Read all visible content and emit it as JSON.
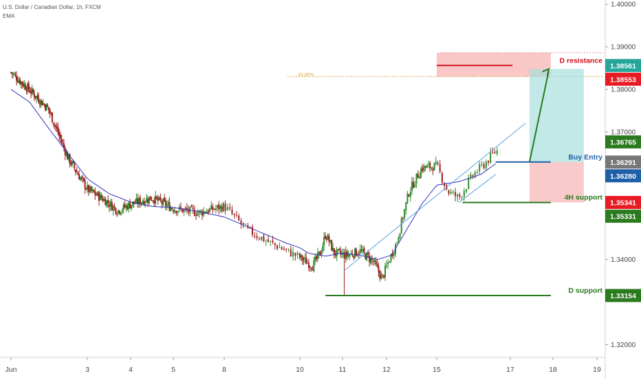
{
  "header": {
    "symbol_line": "U.S. Dollar / Canadian Dollar, 1h, FXCM",
    "indicator": "EMA"
  },
  "colors": {
    "up": "#2a8a2a",
    "down": "#9b1c1c",
    "ema": "#2b2fb8",
    "resistance_zone": "#f7a9a9",
    "target_zone": "#a8dedd",
    "stop_zone": "#f6b3b3",
    "green_line": "#2a7a1e",
    "red_line": "#d0101c",
    "blue_line": "#1f5fa8"
  },
  "chart_data": {
    "type": "candlestick",
    "instrument": "U.S. Dollar / Canadian Dollar",
    "interval": "1h",
    "ylim": [
      1.317,
      1.401
    ],
    "y_ticks": [
      "1.40000",
      "1.39000",
      "1.38000",
      "1.37000",
      "1.34000",
      "1.32000"
    ],
    "x_ticks": [
      "Jun",
      "3",
      "4",
      "5",
      "8",
      "10",
      "11",
      "12",
      "15",
      "17",
      "18",
      "19"
    ],
    "x_tick_day_index": [
      0,
      2,
      3,
      4,
      5,
      6,
      7,
      8,
      9,
      10,
      11,
      12
    ],
    "price_anchors": [
      [
        0,
        1.384
      ],
      [
        0.6,
        1.379
      ],
      [
        1.0,
        1.3755
      ],
      [
        1.2,
        1.371
      ],
      [
        1.5,
        1.364
      ],
      [
        2.0,
        1.3565
      ],
      [
        2.4,
        1.354
      ],
      [
        2.7,
        1.3515
      ],
      [
        3.0,
        1.353
      ],
      [
        3.5,
        1.3545
      ],
      [
        4.0,
        1.352
      ],
      [
        4.5,
        1.351
      ],
      [
        5.0,
        1.3525
      ],
      [
        5.3,
        1.347
      ],
      [
        5.6,
        1.344
      ],
      [
        6.0,
        1.3405
      ],
      [
        6.3,
        1.3385
      ],
      [
        6.5,
        1.342
      ],
      [
        6.6,
        1.346
      ],
      [
        6.7,
        1.344
      ],
      [
        6.8,
        1.3415
      ],
      [
        7.1,
        1.341
      ],
      [
        7.4,
        1.342
      ],
      [
        7.7,
        1.3395
      ],
      [
        7.9,
        1.3355
      ],
      [
        8.2,
        1.344
      ],
      [
        8.45,
        1.356
      ],
      [
        8.7,
        1.3615
      ],
      [
        9.0,
        1.362
      ],
      [
        9.15,
        1.356
      ],
      [
        9.3,
        1.3545
      ],
      [
        9.5,
        1.36
      ],
      [
        9.65,
        1.3625
      ],
      [
        9.8,
        1.3655
      ]
    ],
    "ema_anchors": [
      [
        0,
        1.38
      ],
      [
        0.5,
        1.377
      ],
      [
        1.0,
        1.371
      ],
      [
        1.5,
        1.365
      ],
      [
        2.0,
        1.359
      ],
      [
        2.5,
        1.3555
      ],
      [
        3.0,
        1.3535
      ],
      [
        3.5,
        1.3525
      ],
      [
        4.0,
        1.3522
      ],
      [
        4.5,
        1.3513
      ],
      [
        5.0,
        1.35
      ],
      [
        5.4,
        1.347
      ],
      [
        5.8,
        1.344
      ],
      [
        6.2,
        1.3415
      ],
      [
        6.6,
        1.3408
      ],
      [
        7.0,
        1.3415
      ],
      [
        7.4,
        1.341
      ],
      [
        7.8,
        1.34
      ],
      [
        8.1,
        1.341
      ],
      [
        8.4,
        1.347
      ],
      [
        8.7,
        1.353
      ],
      [
        9.0,
        1.3575
      ],
      [
        9.3,
        1.3583
      ],
      [
        9.6,
        1.36
      ],
      [
        9.8,
        1.3625
      ]
    ],
    "levels": [
      {
        "name": "D resistance",
        "value": 1.38561,
        "color": "#d0101c",
        "day_from": 9.0,
        "day_to": 10.05
      },
      {
        "name": "Buy Entry",
        "value": 1.36291,
        "color": "#1f5fa8",
        "day_from": 9.8,
        "day_to": 10.95
      },
      {
        "name": "4H support",
        "value": 1.35341,
        "color": "#2a7a1e",
        "day_from": 9.35,
        "day_to": 10.95
      },
      {
        "name": "D support",
        "value": 1.33154,
        "color": "#2a7a1e",
        "day_from": 6.6,
        "day_to": 10.95
      }
    ],
    "price_badges": [
      {
        "value": "1.38561",
        "color": "#26a69a",
        "y": 1.38561
      },
      {
        "value": "1.38553",
        "color": "#e81b23",
        "y": 1.38553
      },
      {
        "value": "1.36765",
        "color": "#2a7a1e",
        "y": 1.36765
      },
      {
        "value": "1.36291",
        "color": "#777777",
        "y": 1.36291
      },
      {
        "value": "1.36280",
        "color": "#1f5fa8",
        "y": 1.3628
      },
      {
        "value": "1.35341",
        "color": "#e81b23",
        "y": 1.35341
      },
      {
        "value": "1.35331",
        "color": "#2a7a1e",
        "y": 1.35331
      },
      {
        "value": "1.33154",
        "color": "#2a7a1e",
        "y": 1.33154
      }
    ],
    "fib_label": "61.80%",
    "fib_value": 1.383,
    "resistance_zone": {
      "y_top": 1.3886,
      "y_bottom": 1.383,
      "day_from": 9.0,
      "day_to": 10.95
    },
    "target_zone": {
      "y_top": 1.3848,
      "y_bottom": 1.3629,
      "day_from": 10.45,
      "day_to": 11.7
    },
    "stop_zone": {
      "y_top": 1.3629,
      "y_bottom": 1.3534,
      "day_from": 10.45,
      "day_to": 11.7
    },
    "arrow": {
      "from": [
        10.45,
        1.3629
      ],
      "to": [
        10.9,
        1.3848
      ]
    }
  }
}
